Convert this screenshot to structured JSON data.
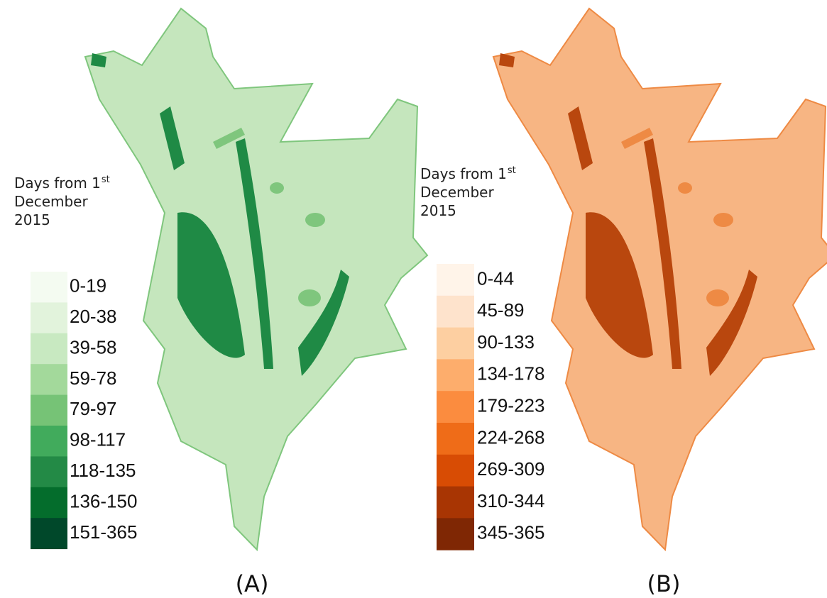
{
  "panels": [
    {
      "legend": {
        "title_lines": [
          "Days from 1",
          "December",
          "2015"
        ],
        "title_superscript": "st",
        "items": [
          {
            "label": "0-19",
            "color": "#f4fbf1"
          },
          {
            "label": "20-38",
            "color": "#e2f3dc"
          },
          {
            "label": "39-58",
            "color": "#c8e9c1"
          },
          {
            "label": "59-78",
            "color": "#a3d99b"
          },
          {
            "label": "79-97",
            "color": "#76c376"
          },
          {
            "label": "98-117",
            "color": "#41ab5c"
          },
          {
            "label": "118-135",
            "color": "#238a46"
          },
          {
            "label": "136-150",
            "color": "#046d2c"
          },
          {
            "label": "151-365",
            "color": "#00482a"
          }
        ]
      },
      "map_colors": {
        "base": "#c5e6bd",
        "mid": "#7fc67d",
        "dark": "#1f8a45"
      },
      "label": "(A)"
    },
    {
      "legend": {
        "title_lines": [
          "Days from 1",
          "December",
          "2015"
        ],
        "title_superscript": "st",
        "items": [
          {
            "label": "0-44",
            "color": "#fff4e9"
          },
          {
            "label": "45-89",
            "color": "#fee3cc"
          },
          {
            "label": "90-133",
            "color": "#fdcfa1"
          },
          {
            "label": "134-178",
            "color": "#fdad6c"
          },
          {
            "label": "179-223",
            "color": "#fb8c3f"
          },
          {
            "label": "224-268",
            "color": "#ef6c18"
          },
          {
            "label": "269-309",
            "color": "#d84c04"
          },
          {
            "label": "310-344",
            "color": "#a83503"
          },
          {
            "label": "345-365",
            "color": "#7f2704"
          }
        ]
      },
      "map_colors": {
        "base": "#f7b583",
        "mid": "#ee8a44",
        "dark": "#b9470e"
      },
      "label": "(B)"
    }
  ]
}
